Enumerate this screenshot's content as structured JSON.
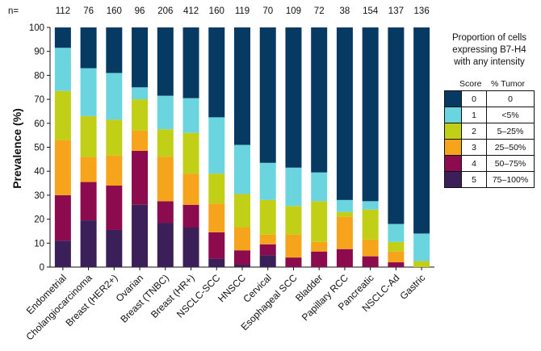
{
  "chart_data": {
    "type": "bar",
    "stacked": true,
    "n_prefix": "n=",
    "ylabel": "Prevalence (%)",
    "xlabel": "",
    "ylim": [
      0,
      100
    ],
    "yticks": [
      0,
      10,
      20,
      30,
      40,
      50,
      60,
      70,
      80,
      90,
      100
    ],
    "grid": false,
    "categories": [
      "Endometrial",
      "Cholangiocarcinoma",
      "Breast (HER2+)",
      "Ovarian",
      "Breast (TNBC)",
      "Breast (HR+)",
      "NSCLC-SCC",
      "HNSCC",
      "Cervical",
      "Esophageal SCC",
      "Bladder",
      "Papillary RCC",
      "Pancreatic",
      "NSCLC-Ad",
      "Gastric"
    ],
    "n": [
      "112",
      "76",
      "160",
      "96",
      "206",
      "412",
      "160",
      "119",
      "70",
      "109",
      "72",
      "38",
      "154",
      "137",
      "136"
    ],
    "series": [
      {
        "score": "5",
        "tumor": "75–100%",
        "color": "#3b1f58",
        "values": [
          11,
          19.5,
          15.5,
          26,
          18.5,
          16.5,
          3.5,
          1,
          5,
          0,
          0,
          0,
          0,
          0,
          0
        ]
      },
      {
        "score": "4",
        "tumor": "50–75%",
        "color": "#8c0a4e",
        "values": [
          19,
          16,
          18.5,
          22.5,
          9,
          9.5,
          11,
          6,
          4.5,
          4,
          6.5,
          7.5,
          4.5,
          2,
          0
        ]
      },
      {
        "score": "3",
        "tumor": "25–50%",
        "color": "#f5a41b",
        "values": [
          23,
          10.5,
          12.5,
          8.5,
          18.5,
          13,
          12,
          9.5,
          4,
          9.5,
          4,
          13.5,
          7,
          4.5,
          0
        ]
      },
      {
        "score": "2",
        "tumor": "5–25%",
        "color": "#c1cf16",
        "values": [
          20.5,
          17,
          15,
          13,
          11.5,
          17,
          12.5,
          14,
          14.5,
          12,
          17,
          2,
          12.5,
          4,
          2.5
        ]
      },
      {
        "score": "1",
        "tumor": "<5%",
        "color": "#6ad4df",
        "values": [
          18,
          20,
          19.5,
          5,
          14,
          14.5,
          23.5,
          20.5,
          15.5,
          16,
          12,
          5,
          3.5,
          7.5,
          11.5
        ]
      },
      {
        "score": "0",
        "tumor": "0",
        "color": "#073a63",
        "values": [
          8.5,
          17,
          19,
          25,
          28.5,
          29.5,
          37.5,
          49,
          56.5,
          58.5,
          60.5,
          72,
          72.5,
          82,
          86
        ]
      }
    ],
    "legend": {
      "title": [
        "Proportion of cells",
        "expressing B7-H4",
        "with any intensity"
      ],
      "header_score": "Score",
      "header_tumor": "% Tumor",
      "placement": "right"
    }
  }
}
